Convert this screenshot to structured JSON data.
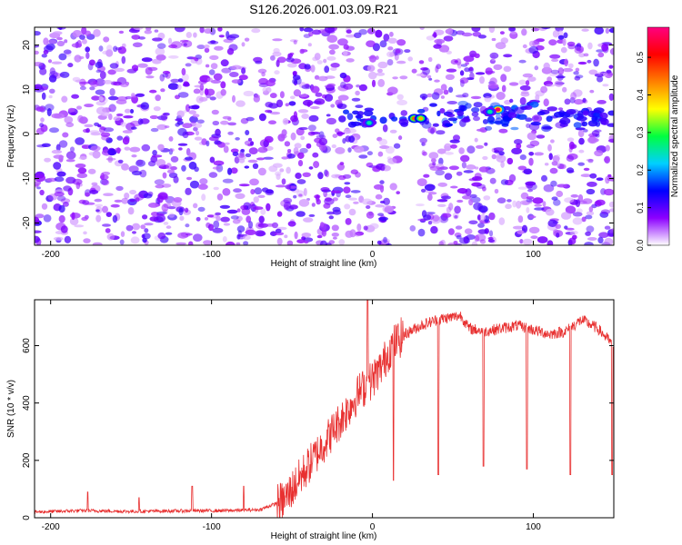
{
  "title": "S126.2026.001.03.09.R21",
  "chart_data": [
    {
      "type": "heatmap",
      "xlabel": "Height of straight line (km)",
      "ylabel": "Frequency (Hz)",
      "xlim": [
        -210,
        150
      ],
      "ylim": [
        -25,
        24
      ],
      "x_ticks": [
        -200,
        -100,
        0,
        100
      ],
      "y_ticks": [
        -20,
        -10,
        0,
        10,
        20
      ],
      "colorbar": {
        "label": "Normalized spectral amplitude",
        "range": [
          0,
          0.58
        ],
        "ticks": [
          0.0,
          0.1,
          0.2,
          0.3,
          0.4,
          0.5
        ],
        "colors": [
          "#ffffff",
          "#8c00ff",
          "#0000ff",
          "#00d0ff",
          "#00ff40",
          "#ffff00",
          "#ff8000",
          "#ff0000",
          "#ff0080"
        ]
      },
      "features": {
        "band_frequency_hz": 4,
        "band_x_range_km": [
          -20,
          150
        ],
        "peak_points": [
          {
            "x": -2,
            "y": 2.5,
            "value": 0.25
          },
          {
            "x": 26,
            "y": 3.5,
            "value": 0.45
          },
          {
            "x": 30,
            "y": 3.5,
            "value": 0.4
          },
          {
            "x": 78,
            "y": 5.5,
            "value": 0.55
          },
          {
            "x": 73,
            "y": 5,
            "value": 0.25
          }
        ],
        "blank_column_km": [
          20,
          30
        ]
      }
    },
    {
      "type": "line",
      "xlabel": "Height of straight line (km)",
      "ylabel": "SNR (10 * v/v)",
      "xlim": [
        -210,
        150
      ],
      "ylim": [
        0,
        760
      ],
      "x_ticks": [
        -200,
        -100,
        0,
        100
      ],
      "y_ticks": [
        0,
        200,
        400,
        600
      ],
      "color": "#e83030",
      "series": [
        {
          "x": [
            -210,
            -180,
            -150,
            -120,
            -90,
            -70,
            -55,
            -45,
            -35,
            -25,
            -15,
            -8,
            -2,
            5,
            12,
            20,
            30,
            40,
            50,
            55,
            60,
            70,
            80,
            90,
            100,
            110,
            120,
            130,
            140,
            150
          ],
          "values": [
            20,
            25,
            22,
            24,
            25,
            28,
            60,
            140,
            220,
            300,
            380,
            440,
            470,
            520,
            600,
            640,
            670,
            690,
            700,
            705,
            660,
            650,
            660,
            670,
            655,
            640,
            650,
            690,
            660,
            600
          ]
        }
      ],
      "spikes": [
        {
          "x": -177,
          "value": 90
        },
        {
          "x": -145,
          "value": 70
        },
        {
          "x": -112,
          "value": 110
        },
        {
          "x": -80,
          "value": 110
        },
        {
          "x": -3,
          "value": 760
        }
      ],
      "dips": [
        {
          "x": 13,
          "value": 130
        },
        {
          "x": 41,
          "value": 150
        },
        {
          "x": 69,
          "value": 180
        },
        {
          "x": 96,
          "value": 170
        },
        {
          "x": 123,
          "value": 150
        },
        {
          "x": 149,
          "value": 150
        }
      ]
    }
  ]
}
